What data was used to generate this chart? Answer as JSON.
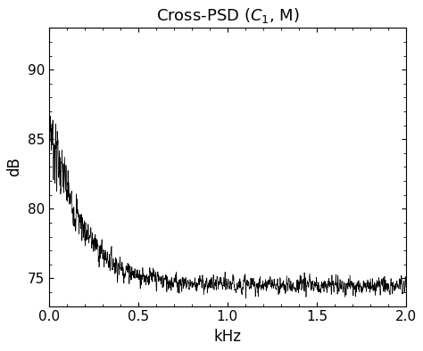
{
  "title": "Cross-PSD ($C_1$, M)",
  "xlabel": "kHz",
  "ylabel": "dB",
  "xlim": [
    0,
    2
  ],
  "ylim": [
    73,
    93
  ],
  "yticks": [
    75,
    80,
    85,
    90
  ],
  "xticks": [
    0,
    0.5,
    1,
    1.5,
    2
  ],
  "line_color": "#000000",
  "background_color": "#ffffff",
  "seed": 7,
  "n_points": 2000,
  "title_fontsize": 13,
  "axis_label_fontsize": 12,
  "envelope_base": 74.5,
  "envelope_peak": 12.0,
  "envelope_decay": 5.5,
  "noise_base": 0.5,
  "noise_decay_amp": 1.8,
  "noise_decay_rate": 6.0,
  "smooth_window": 3
}
